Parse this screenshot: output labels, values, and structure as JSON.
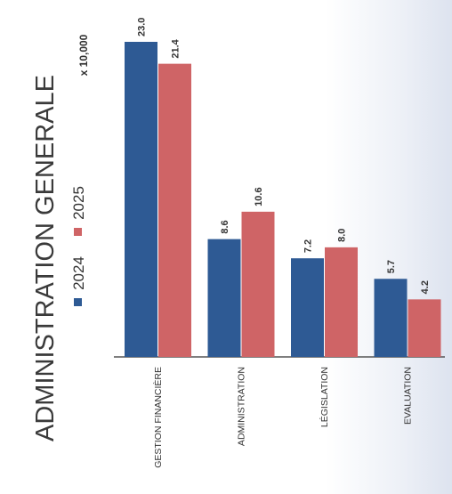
{
  "chart_data": {
    "type": "bar",
    "title": "ADMINISTRATION GENERALE",
    "unit_note": "x 10,000",
    "categories": [
      "GESTION FINANCIÈRE",
      "ADMINISTRATION",
      "LÉGISLATION",
      "EVALUATION"
    ],
    "series": [
      {
        "name": "2024",
        "values": [
          23.0,
          8.6,
          7.2,
          5.7
        ],
        "labels": [
          "23.0",
          "8.6",
          "7.2",
          "5.7"
        ],
        "color": "#2e5a94"
      },
      {
        "name": "2025",
        "values": [
          21.4,
          10.6,
          8.0,
          4.2
        ],
        "labels": [
          "21.4",
          "10.6",
          "8.0",
          "4.2"
        ],
        "color": "#cf6466"
      }
    ],
    "ylim": [
      0,
      23.0
    ],
    "grid": false,
    "legend_placement": "left, under title"
  }
}
